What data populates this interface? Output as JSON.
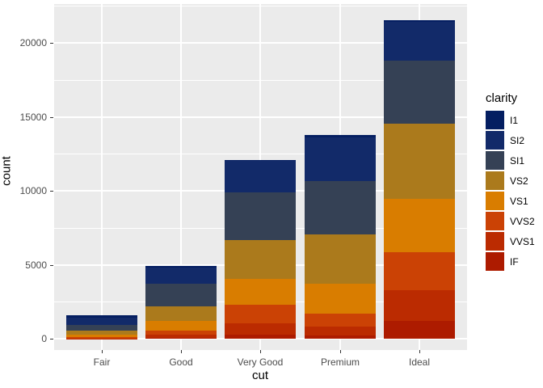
{
  "legend": {
    "title": "clarity",
    "position": "right"
  },
  "axes": {
    "y_title": "count",
    "x_title": "cut",
    "y_tick_labels": [
      "0",
      "5000",
      "10000",
      "15000",
      "20000"
    ],
    "x_tick_labels": [
      "Fair",
      "Good",
      "Very Good",
      "Premium",
      "Ideal"
    ]
  },
  "style": {
    "background": "#FFFFFF",
    "panel_background": "#EBEBEB",
    "gridline_color": "#FFFFFF",
    "axis_text_color": "#4D4D4D",
    "title_text_color": "#000000",
    "tick_mark_color": "#333333"
  },
  "chart_data": {
    "type": "bar",
    "stacked": true,
    "title": "",
    "xlabel": "cut",
    "ylabel": "count",
    "categories": [
      "Fair",
      "Good",
      "Very Good",
      "Premium",
      "Ideal"
    ],
    "legend_title": "clarity",
    "legend_position": "right",
    "grid": true,
    "ylim": [
      0,
      22600
    ],
    "y_major_ticks": [
      0,
      5000,
      10000,
      15000,
      20000
    ],
    "y_minor_gridlines": [
      2500,
      7500,
      12500,
      17500,
      22500
    ],
    "stack_order_bottom_to_top": [
      "IF",
      "VVS1",
      "VVS2",
      "VS1",
      "VS2",
      "SI1",
      "SI2",
      "I1"
    ],
    "series": [
      {
        "name": "I1",
        "color": "#041E61",
        "values": [
          210,
          96,
          84,
          205,
          146
        ]
      },
      {
        "name": "SI2",
        "color": "#122A69",
        "values": [
          466,
          1081,
          2100,
          2949,
          2598
        ]
      },
      {
        "name": "SI1",
        "color": "#354155",
        "values": [
          408,
          1560,
          3240,
          3575,
          4282
        ]
      },
      {
        "name": "VS2",
        "color": "#AB7A1C",
        "values": [
          261,
          978,
          2591,
          3357,
          5071
        ]
      },
      {
        "name": "VS1",
        "color": "#D97D00",
        "values": [
          170,
          648,
          1775,
          1989,
          3589
        ]
      },
      {
        "name": "VVS2",
        "color": "#CB4205",
        "values": [
          69,
          286,
          1235,
          870,
          2606
        ]
      },
      {
        "name": "VVS1",
        "color": "#BB2B01",
        "values": [
          17,
          186,
          789,
          616,
          2047
        ]
      },
      {
        "name": "IF",
        "color": "#AD1B00",
        "values": [
          9,
          71,
          268,
          230,
          1212
        ]
      }
    ],
    "category_totals": [
      1610,
      4906,
      12082,
      13791,
      21551
    ]
  }
}
